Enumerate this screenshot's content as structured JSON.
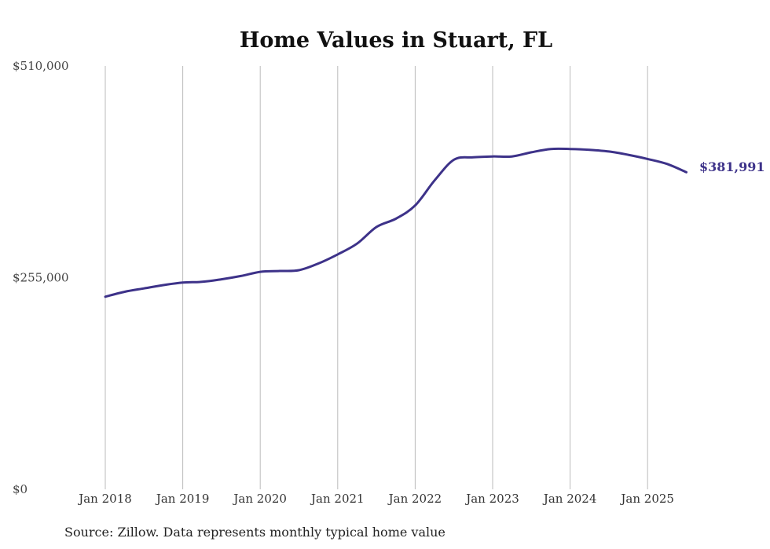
{
  "chart_data": {
    "type": "line",
    "title": "Home Values in Stuart, FL",
    "xlabel": "",
    "ylabel": "",
    "ylim": [
      0,
      510000
    ],
    "y_ticks": [
      "$0",
      "$255,000",
      "$510,000"
    ],
    "y_tick_values": [
      0,
      255000,
      510000
    ],
    "x_tick_labels": [
      "Jan 2018",
      "Jan 2019",
      "Jan 2020",
      "Jan 2021",
      "Jan 2022",
      "Jan 2023",
      "Jan 2024",
      "Jan 2025"
    ],
    "x_range": [
      2018.0,
      2025.5
    ],
    "grid": "vertical",
    "line_color": "#3d3289",
    "end_label": "$381,991",
    "series": [
      {
        "x": [
          2018.0,
          2018.25,
          2018.5,
          2018.75,
          2019.0,
          2019.25,
          2019.5,
          2019.75,
          2020.0,
          2020.25,
          2020.5,
          2020.75,
          2021.0,
          2021.25,
          2021.5,
          2021.75,
          2022.0,
          2022.25,
          2022.5,
          2022.75,
          2023.0,
          2023.25,
          2023.5,
          2023.75,
          2024.0,
          2024.25,
          2024.5,
          2024.75,
          2025.0,
          2025.25,
          2025.5
        ],
        "values": [
          232000,
          238000,
          242000,
          246000,
          249000,
          250000,
          253000,
          257000,
          262000,
          263000,
          264000,
          272000,
          283000,
          296000,
          316000,
          326000,
          342000,
          372000,
          397000,
          400000,
          401000,
          401000,
          406000,
          410000,
          410000,
          409000,
          407000,
          403000,
          398000,
          392000,
          381991
        ]
      }
    ]
  },
  "footer": {
    "source": "Source: Zillow. Data represents monthly typical home value"
  }
}
